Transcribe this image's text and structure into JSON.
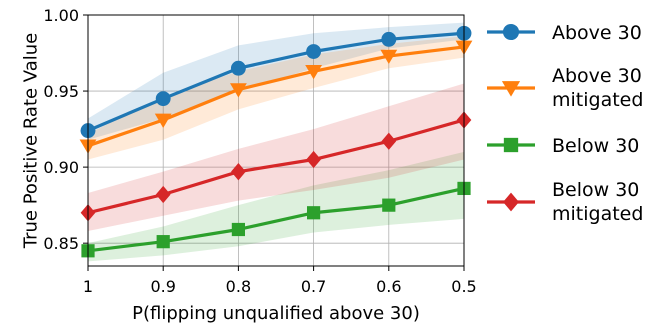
{
  "chart_data": {
    "type": "line",
    "title": "",
    "xlabel": "P(flipping unqualified above 30)",
    "ylabel": "True Positive Rate Value",
    "x": [
      1,
      0.9,
      0.8,
      0.7,
      0.6,
      0.5
    ],
    "x_tick_labels": [
      "1",
      "0.9",
      "0.8",
      "0.7",
      "0.6",
      "0.5"
    ],
    "xlim": [
      1,
      0.5
    ],
    "ylim": [
      0.835,
      1.0
    ],
    "y_ticks": [
      0.85,
      0.9,
      0.95,
      1.0
    ],
    "y_tick_labels": [
      "0.85",
      "0.90",
      "0.95",
      "1.00"
    ],
    "grid": true,
    "legend_position": "right-outside",
    "series": [
      {
        "name": "Above 30",
        "label_lines": [
          "Above 30"
        ],
        "color": "#1f77b4",
        "marker": "circle",
        "values": [
          0.924,
          0.945,
          0.965,
          0.976,
          0.984,
          0.988
        ],
        "lower": [
          0.918,
          0.932,
          0.95,
          0.965,
          0.978,
          0.984
        ],
        "upper": [
          0.932,
          0.962,
          0.98,
          0.988,
          0.992,
          0.995
        ]
      },
      {
        "name": "Above 30 mitigated",
        "label_lines": [
          "Above 30",
          "mitigated"
        ],
        "color": "#ff7f0e",
        "marker": "triangle-down",
        "values": [
          0.914,
          0.931,
          0.951,
          0.963,
          0.973,
          0.979
        ],
        "lower": [
          0.905,
          0.918,
          0.938,
          0.952,
          0.965,
          0.972
        ],
        "upper": [
          0.922,
          0.946,
          0.963,
          0.974,
          0.981,
          0.986
        ]
      },
      {
        "name": "Below 30",
        "label_lines": [
          "Below 30"
        ],
        "color": "#2ca02c",
        "marker": "square",
        "values": [
          0.845,
          0.851,
          0.859,
          0.87,
          0.875,
          0.886
        ],
        "lower": [
          0.838,
          0.842,
          0.848,
          0.857,
          0.862,
          0.866
        ],
        "upper": [
          0.85,
          0.861,
          0.875,
          0.888,
          0.898,
          0.91
        ]
      },
      {
        "name": "Below 30 mitigated",
        "label_lines": [
          "Below 30",
          "mitigated"
        ],
        "color": "#d62728",
        "marker": "diamond",
        "values": [
          0.87,
          0.882,
          0.897,
          0.905,
          0.917,
          0.931
        ],
        "lower": [
          0.858,
          0.868,
          0.878,
          0.885,
          0.893,
          0.905
        ],
        "upper": [
          0.883,
          0.897,
          0.912,
          0.925,
          0.94,
          0.955
        ]
      }
    ]
  }
}
